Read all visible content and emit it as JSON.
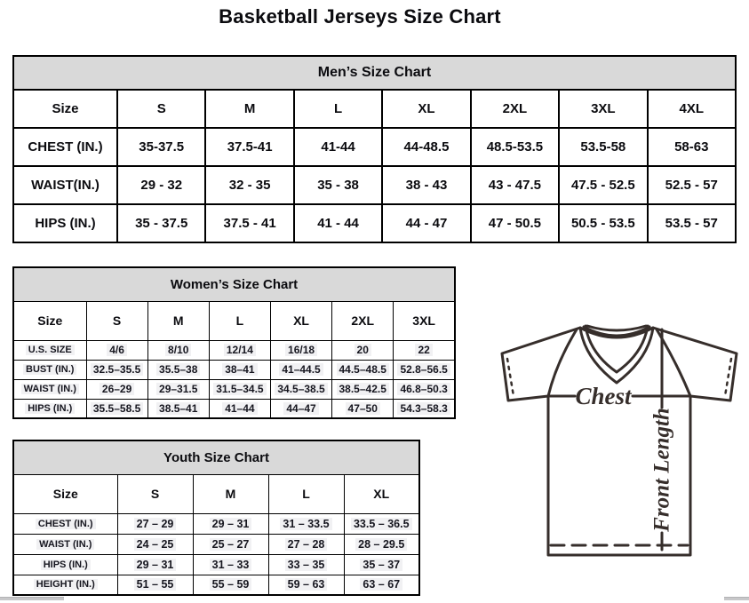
{
  "page": {
    "title": "Basketball Jerseys Size Chart"
  },
  "tables": [
    {
      "id": "men",
      "title": "Men’s Size Chart",
      "size_label": "Size",
      "columns": [
        "S",
        "M",
        "L",
        "XL",
        "2XL",
        "3XL",
        "4XL"
      ],
      "rows": [
        {
          "label": "CHEST (IN.)",
          "values": [
            "35-37.5",
            "37.5-41",
            "41-44",
            "44-48.5",
            "48.5-53.5",
            "53.5-58",
            "58-63"
          ]
        },
        {
          "label": "WAIST(IN.)",
          "values": [
            "29 - 32",
            "32 - 35",
            "35 - 38",
            "38 - 43",
            "43 - 47.5",
            "47.5 - 52.5",
            "52.5 - 57"
          ]
        },
        {
          "label": "HIPS (IN.)",
          "values": [
            "35 - 37.5",
            "37.5 - 41",
            "41 - 44",
            "44 - 47",
            "47 - 50.5",
            "50.5 - 53.5",
            "53.5 - 57"
          ]
        }
      ]
    },
    {
      "id": "women",
      "title": "Women’s Size Chart",
      "size_label": "Size",
      "columns": [
        "S",
        "M",
        "L",
        "XL",
        "2XL",
        "3XL"
      ],
      "rows": [
        {
          "label": "U.S. SIZE",
          "values": [
            "4/6",
            "8/10",
            "12/14",
            "16/18",
            "20",
            "22"
          ]
        },
        {
          "label": "BUST (IN.)",
          "values": [
            "32.5–35.5",
            "35.5–38",
            "38–41",
            "41–44.5",
            "44.5–48.5",
            "52.8–56.5"
          ]
        },
        {
          "label": "WAIST (IN.)",
          "values": [
            "26–29",
            "29–31.5",
            "31.5–34.5",
            "34.5–38.5",
            "38.5–42.5",
            "46.8–50.3"
          ]
        },
        {
          "label": "HIPS (IN.)",
          "values": [
            "35.5–58.5",
            "38.5–41",
            "41–44",
            "44–47",
            "47–50",
            "54.3–58.3"
          ]
        }
      ]
    },
    {
      "id": "youth",
      "title": "Youth Size Chart",
      "size_label": "Size",
      "columns": [
        "S",
        "M",
        "L",
        "XL"
      ],
      "rows": [
        {
          "label": "CHEST (IN.)",
          "values": [
            "27 – 29",
            "29 – 31",
            "31 – 33.5",
            "33.5 – 36.5"
          ]
        },
        {
          "label": "WAIST (IN.)",
          "values": [
            "24 – 25",
            "25 – 27",
            "27 – 28",
            "28 – 29.5"
          ]
        },
        {
          "label": "HIPS (IN.)",
          "values": [
            "29 – 31",
            "31 – 33",
            "33 – 35",
            "35 – 37"
          ]
        },
        {
          "label": "HEIGHT (IN.)",
          "values": [
            "51 – 55",
            "55 – 59",
            "59 – 63",
            "63 – 67"
          ]
        }
      ]
    }
  ],
  "diagram": {
    "chest_label": "Chest",
    "front_length_label": "Front Length"
  },
  "colors": {
    "table_header_bg": "#d9d9d9",
    "border": "#000000",
    "diagram_stroke": "#362e2b",
    "highlight_bg": "#f1f1f3"
  }
}
